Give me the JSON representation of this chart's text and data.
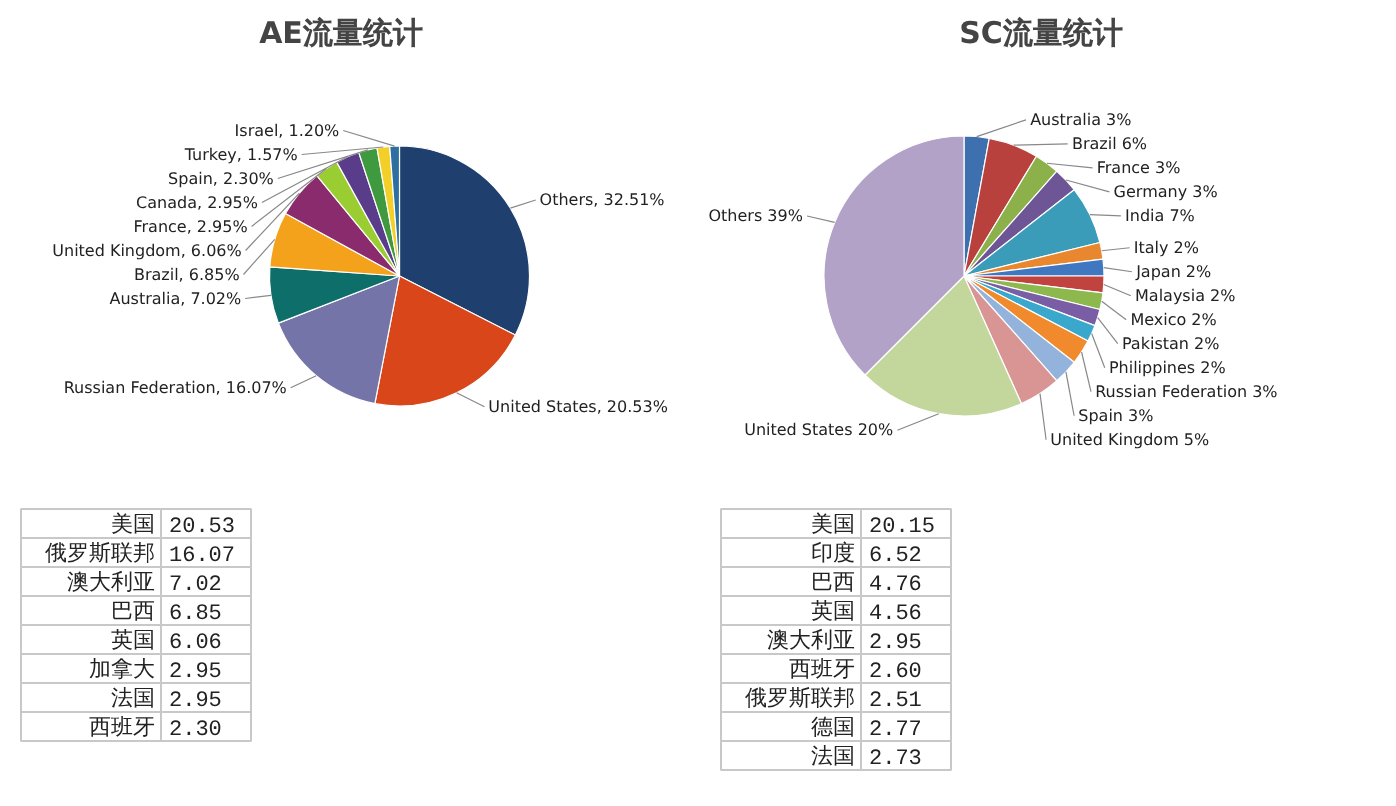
{
  "chart_data": [
    {
      "type": "pie",
      "title": "AE流量统计",
      "categories": [
        "Others",
        "United States",
        "Russian Federation",
        "Australia",
        "Brazil",
        "United Kingdom",
        "France",
        "Canada",
        "Spain",
        "Turkey",
        "Israel"
      ],
      "values": [
        32.51,
        20.53,
        16.07,
        7.02,
        6.85,
        6.06,
        2.95,
        2.95,
        2.3,
        1.57,
        1.2
      ],
      "value_labels": [
        "32.51%",
        "20.53%",
        "16.07%",
        "7.02%",
        "6.85%",
        "6.06%",
        "2.95%",
        "2.95%",
        "2.30%",
        "1.57%",
        "1.20%"
      ],
      "colors": [
        "#1f3f6e",
        "#d9461a",
        "#7474a8",
        "#0e6f6a",
        "#f4a11b",
        "#8a2b6e",
        "#9acd32",
        "#5a3d8a",
        "#3f9a3f",
        "#f2d027",
        "#2c6fa0"
      ]
    },
    {
      "type": "other",
      "categories": [
        "美国",
        "俄罗斯联邦",
        "澳大利亚",
        "巴西",
        "英国",
        "加拿大",
        "法国",
        "西班牙"
      ],
      "values": [
        20.53,
        16.07,
        7.02,
        6.85,
        6.06,
        2.95,
        2.95,
        2.3
      ],
      "value_labels": [
        "20.53",
        "16.07",
        "7.02",
        "6.85",
        "6.06",
        "2.95",
        "2.95",
        "2.30"
      ]
    },
    {
      "type": "pie",
      "title": "SC流量统计",
      "categories": [
        "Australia",
        "Brazil",
        "France",
        "Germany",
        "India",
        "Italy",
        "Japan",
        "Malaysia",
        "Mexico",
        "Pakistan",
        "Philippines",
        "Russian Federation",
        "Spain",
        "United Kingdom",
        "United States",
        "Others"
      ],
      "values": [
        3,
        6,
        3,
        3,
        7,
        2,
        2,
        2,
        2,
        2,
        2,
        3,
        3,
        5,
        20,
        39
      ],
      "value_labels": [
        "3%",
        "6%",
        "3%",
        "3%",
        "7%",
        "2%",
        "2%",
        "2%",
        "2%",
        "2%",
        "2%",
        "3%",
        "3%",
        "5%",
        "20%",
        "39%"
      ],
      "colors": [
        "#3e6fae",
        "#b8413e",
        "#8cb04a",
        "#6e5596",
        "#3a9cb8",
        "#e8872e",
        "#3f78c0",
        "#c0433f",
        "#8db84d",
        "#7a5ea5",
        "#3aa8cc",
        "#f08a2c",
        "#94b3dc",
        "#d99594",
        "#c3d69b",
        "#b3a2c7"
      ]
    },
    {
      "type": "other",
      "categories": [
        "美国",
        "印度",
        "巴西",
        "英国",
        "澳大利亚",
        "西班牙",
        "俄罗斯联邦",
        "德国",
        "法国"
      ],
      "values": [
        20.15,
        6.52,
        4.76,
        4.56,
        2.95,
        2.6,
        2.51,
        2.77,
        2.73
      ],
      "value_labels": [
        "20.15",
        "6.52",
        "4.76",
        "4.56",
        "2.95",
        "2.60",
        "2.51",
        "2.77",
        "2.73"
      ]
    }
  ]
}
